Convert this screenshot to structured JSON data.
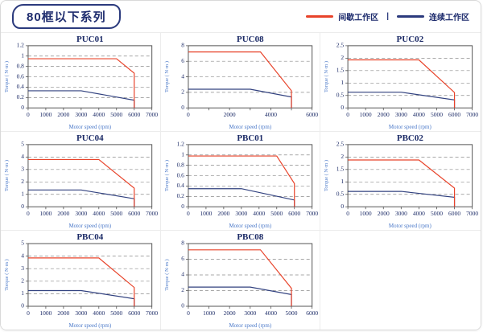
{
  "header": {
    "title": "80框以下系列"
  },
  "legend": {
    "items": [
      {
        "label": "间歇工作区",
        "color": "#e8432a"
      },
      {
        "label": "连续工作区",
        "color": "#2b3a7d"
      }
    ],
    "separator": "|"
  },
  "colors": {
    "intermittent": "#e8432a",
    "continuous": "#31417f",
    "title_text": "#1b2a66",
    "tick_text": "#1b2a66",
    "axis_label_text": "#4a78c8",
    "plot_border": "#555555",
    "gridline": "#8a8a8a",
    "cell_border": "#ececec"
  },
  "chart_data": [
    {
      "type": "line",
      "title": "PUC01",
      "xlabel": "Motor speed (rpm)",
      "ylabel": "Torque ( N·m )",
      "xlim": [
        0,
        7000
      ],
      "xtick_step": 1000,
      "xlabel_step": 1000,
      "ylim": [
        0,
        1.2
      ],
      "ytick_step": 0.2,
      "grid": "horizontal-dashed",
      "series": [
        {
          "name": "间歇工作区",
          "color": "#e8432a",
          "points": [
            [
              0,
              0.95
            ],
            [
              5000,
              0.95
            ],
            [
              6000,
              0.67
            ],
            [
              6000,
              0
            ]
          ]
        },
        {
          "name": "连续工作区",
          "color": "#31417f",
          "points": [
            [
              0,
              0.33
            ],
            [
              3000,
              0.33
            ],
            [
              6000,
              0.15
            ],
            [
              6000,
              0
            ]
          ]
        }
      ]
    },
    {
      "type": "line",
      "title": "PUC08",
      "xlabel": "Motor speed (rpm)",
      "ylabel": "Torque ( N·m )",
      "xlim": [
        0,
        6000
      ],
      "xtick_step": 1000,
      "xlabel_step": 2000,
      "ylim": [
        0,
        8
      ],
      "ytick_step": 2,
      "grid": "horizontal-dashed",
      "series": [
        {
          "name": "间歇工作区",
          "color": "#e8432a",
          "points": [
            [
              0,
              7.2
            ],
            [
              3500,
              7.2
            ],
            [
              5000,
              2.2
            ],
            [
              5000,
              0
            ]
          ]
        },
        {
          "name": "连续工作区",
          "color": "#31417f",
          "points": [
            [
              0,
              2.4
            ],
            [
              3000,
              2.4
            ],
            [
              5000,
              1.4
            ],
            [
              5000,
              0
            ]
          ]
        }
      ]
    },
    {
      "type": "line",
      "title": "PUC02",
      "xlabel": "Motor speed (rpm)",
      "ylabel": "Torque ( N·m )",
      "xlim": [
        0,
        7000
      ],
      "xtick_step": 1000,
      "xlabel_step": 1000,
      "ylim": [
        0,
        2.5
      ],
      "ytick_step": 0.5,
      "grid": "horizontal-dashed",
      "series": [
        {
          "name": "间歇工作区",
          "color": "#e8432a",
          "points": [
            [
              0,
              1.93
            ],
            [
              4000,
              1.93
            ],
            [
              6000,
              0.62
            ],
            [
              6000,
              0
            ]
          ]
        },
        {
          "name": "连续工作区",
          "color": "#31417f",
          "points": [
            [
              0,
              0.63
            ],
            [
              3000,
              0.63
            ],
            [
              6000,
              0.32
            ],
            [
              6000,
              0
            ]
          ]
        }
      ]
    },
    {
      "type": "line",
      "title": "PUC04",
      "xlabel": "Motor speed (rpm)",
      "ylabel": "Torque ( N·m )",
      "xlim": [
        0,
        7000
      ],
      "xtick_step": 1000,
      "xlabel_step": 1000,
      "ylim": [
        0,
        5
      ],
      "ytick_step": 1,
      "grid": "horizontal-dashed",
      "series": [
        {
          "name": "间歇工作区",
          "color": "#e8432a",
          "points": [
            [
              0,
              3.8
            ],
            [
              4000,
              3.8
            ],
            [
              6000,
              1.5
            ],
            [
              6000,
              0
            ]
          ]
        },
        {
          "name": "连续工作区",
          "color": "#31417f",
          "points": [
            [
              0,
              1.35
            ],
            [
              3000,
              1.35
            ],
            [
              6000,
              0.65
            ],
            [
              6000,
              0
            ]
          ]
        }
      ]
    },
    {
      "type": "line",
      "title": "PBC01",
      "xlabel": "Motor speed (rpm)",
      "ylabel": "Torque ( N·m )",
      "xlim": [
        0,
        7000
      ],
      "xtick_step": 1000,
      "xlabel_step": 1000,
      "ylim": [
        0,
        1.2
      ],
      "ytick_step": 0.2,
      "grid": "horizontal-dashed",
      "series": [
        {
          "name": "间歇工作区",
          "color": "#e8432a",
          "points": [
            [
              0,
              0.98
            ],
            [
              5000,
              0.98
            ],
            [
              6000,
              0.45
            ],
            [
              6000,
              0
            ]
          ]
        },
        {
          "name": "连续工作区",
          "color": "#31417f",
          "points": [
            [
              0,
              0.35
            ],
            [
              3000,
              0.35
            ],
            [
              6000,
              0.13
            ],
            [
              6000,
              0
            ]
          ]
        }
      ]
    },
    {
      "type": "line",
      "title": "PBC02",
      "xlabel": "Motor speed (rpm)",
      "ylabel": "Torque ( N·m )",
      "xlim": [
        0,
        7000
      ],
      "xtick_step": 1000,
      "xlabel_step": 1000,
      "ylim": [
        0,
        2.5
      ],
      "ytick_step": 0.5,
      "grid": "horizontal-dashed",
      "series": [
        {
          "name": "间歇工作区",
          "color": "#e8432a",
          "points": [
            [
              0,
              1.88
            ],
            [
              4000,
              1.88
            ],
            [
              6000,
              0.75
            ],
            [
              6000,
              0
            ]
          ]
        },
        {
          "name": "连续工作区",
          "color": "#31417f",
          "points": [
            [
              0,
              0.62
            ],
            [
              3000,
              0.62
            ],
            [
              6000,
              0.38
            ],
            [
              6000,
              0
            ]
          ]
        }
      ]
    },
    {
      "type": "line",
      "title": "PBC04",
      "xlabel": "Motor speed (rpm)",
      "ylabel": "Torque ( N·m )",
      "xlim": [
        0,
        7000
      ],
      "xtick_step": 1000,
      "xlabel_step": 1000,
      "ylim": [
        0,
        5
      ],
      "ytick_step": 1,
      "grid": "horizontal-dashed",
      "series": [
        {
          "name": "间歇工作区",
          "color": "#e8432a",
          "points": [
            [
              0,
              3.85
            ],
            [
              4000,
              3.85
            ],
            [
              6000,
              1.5
            ],
            [
              6000,
              0
            ]
          ]
        },
        {
          "name": "连续工作区",
          "color": "#31417f",
          "points": [
            [
              0,
              1.25
            ],
            [
              3000,
              1.25
            ],
            [
              6000,
              0.6
            ],
            [
              6000,
              0
            ]
          ]
        }
      ]
    },
    {
      "type": "line",
      "title": "PBC08",
      "xlabel": "Motor speed (rpm)",
      "ylabel": "Torque ( N·m )",
      "xlim": [
        0,
        6000
      ],
      "xtick_step": 1000,
      "xlabel_step": 1000,
      "ylim": [
        0,
        8
      ],
      "ytick_step": 2,
      "grid": "horizontal-dashed",
      "series": [
        {
          "name": "间歇工作区",
          "color": "#e8432a",
          "points": [
            [
              0,
              7.2
            ],
            [
              3500,
              7.2
            ],
            [
              5000,
              2.3
            ],
            [
              5000,
              0
            ]
          ]
        },
        {
          "name": "连续工作区",
          "color": "#31417f",
          "points": [
            [
              0,
              2.45
            ],
            [
              3000,
              2.45
            ],
            [
              5000,
              1.5
            ],
            [
              5000,
              0
            ]
          ]
        }
      ]
    },
    null
  ]
}
